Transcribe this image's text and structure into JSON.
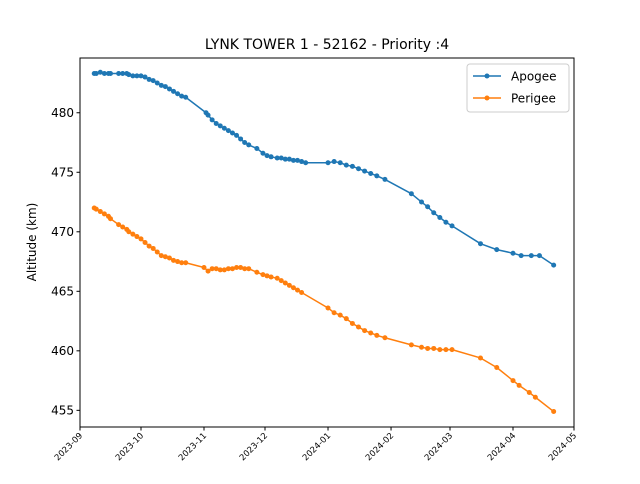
{
  "chart_data": {
    "type": "line",
    "title": "LYNK TOWER 1 - 52162 - Priority :4",
    "xlabel": "",
    "ylabel": "Altitude (km)",
    "xlim": [
      "2023-09-01",
      "2024-05-01"
    ],
    "ylim": [
      453.6,
      484.6
    ],
    "y_ticks": [
      455,
      460,
      465,
      470,
      475,
      480
    ],
    "x_ticks": [
      "2023-09",
      "2023-10",
      "2023-11",
      "2023-12",
      "2024-01",
      "2024-02",
      "2024-03",
      "2024-04",
      "2024-05"
    ],
    "grid": false,
    "legend_position": "top-right",
    "colors": {
      "apogee": "#1f77b4",
      "perigee": "#ff7f0e"
    },
    "series": [
      {
        "name": "Apogee",
        "color": "#1f77b4",
        "points": [
          [
            "2023-09-08",
            483.3
          ],
          [
            "2023-09-09",
            483.3
          ],
          [
            "2023-09-11",
            483.4
          ],
          [
            "2023-09-13",
            483.3
          ],
          [
            "2023-09-15",
            483.3
          ],
          [
            "2023-09-16",
            483.3
          ],
          [
            "2023-09-20",
            483.3
          ],
          [
            "2023-09-22",
            483.3
          ],
          [
            "2023-09-24",
            483.3
          ],
          [
            "2023-09-25",
            483.2
          ],
          [
            "2023-09-27",
            483.1
          ],
          [
            "2023-09-29",
            483.1
          ],
          [
            "2023-10-01",
            483.1
          ],
          [
            "2023-10-03",
            483.0
          ],
          [
            "2023-10-05",
            482.8
          ],
          [
            "2023-10-07",
            482.7
          ],
          [
            "2023-10-09",
            482.5
          ],
          [
            "2023-10-11",
            482.3
          ],
          [
            "2023-10-13",
            482.2
          ],
          [
            "2023-10-15",
            482.0
          ],
          [
            "2023-10-17",
            481.8
          ],
          [
            "2023-10-19",
            481.6
          ],
          [
            "2023-10-21",
            481.4
          ],
          [
            "2023-10-23",
            481.3
          ],
          [
            "2023-11-02",
            480.0
          ],
          [
            "2023-11-03",
            479.8
          ],
          [
            "2023-11-05",
            479.4
          ],
          [
            "2023-11-07",
            479.1
          ],
          [
            "2023-11-09",
            478.9
          ],
          [
            "2023-11-11",
            478.7
          ],
          [
            "2023-11-13",
            478.5
          ],
          [
            "2023-11-15",
            478.3
          ],
          [
            "2023-11-17",
            478.1
          ],
          [
            "2023-11-19",
            477.8
          ],
          [
            "2023-11-21",
            477.5
          ],
          [
            "2023-11-23",
            477.3
          ],
          [
            "2023-11-27",
            477.0
          ],
          [
            "2023-11-30",
            476.6
          ],
          [
            "2023-12-02",
            476.4
          ],
          [
            "2023-12-04",
            476.3
          ],
          [
            "2023-12-07",
            476.2
          ],
          [
            "2023-12-09",
            476.2
          ],
          [
            "2023-12-11",
            476.1
          ],
          [
            "2023-12-13",
            476.1
          ],
          [
            "2023-12-15",
            476.0
          ],
          [
            "2023-12-17",
            476.0
          ],
          [
            "2023-12-19",
            475.9
          ],
          [
            "2023-12-21",
            475.8
          ],
          [
            "2024-01-01",
            475.8
          ],
          [
            "2024-01-04",
            475.9
          ],
          [
            "2024-01-07",
            475.8
          ],
          [
            "2024-01-10",
            475.6
          ],
          [
            "2024-01-13",
            475.5
          ],
          [
            "2024-01-16",
            475.3
          ],
          [
            "2024-01-19",
            475.1
          ],
          [
            "2024-01-22",
            474.9
          ],
          [
            "2024-01-25",
            474.7
          ],
          [
            "2024-01-29",
            474.4
          ],
          [
            "2024-02-11",
            473.2
          ],
          [
            "2024-02-16",
            472.5
          ],
          [
            "2024-02-19",
            472.1
          ],
          [
            "2024-02-22",
            471.6
          ],
          [
            "2024-02-25",
            471.2
          ],
          [
            "2024-02-28",
            470.8
          ],
          [
            "2024-03-02",
            470.5
          ],
          [
            "2024-03-16",
            469.0
          ],
          [
            "2024-03-24",
            468.5
          ],
          [
            "2024-04-01",
            468.2
          ],
          [
            "2024-04-05",
            468.0
          ],
          [
            "2024-04-10",
            468.0
          ],
          [
            "2024-04-14",
            468.0
          ],
          [
            "2024-04-21",
            467.2
          ]
        ]
      },
      {
        "name": "Perigee",
        "color": "#ff7f0e",
        "points": [
          [
            "2023-09-08",
            472.0
          ],
          [
            "2023-09-09",
            471.9
          ],
          [
            "2023-09-11",
            471.7
          ],
          [
            "2023-09-13",
            471.5
          ],
          [
            "2023-09-15",
            471.3
          ],
          [
            "2023-09-16",
            471.1
          ],
          [
            "2023-09-20",
            470.6
          ],
          [
            "2023-09-22",
            470.4
          ],
          [
            "2023-09-24",
            470.2
          ],
          [
            "2023-09-25",
            470.0
          ],
          [
            "2023-09-27",
            469.8
          ],
          [
            "2023-09-29",
            469.6
          ],
          [
            "2023-10-01",
            469.4
          ],
          [
            "2023-10-03",
            469.1
          ],
          [
            "2023-10-05",
            468.8
          ],
          [
            "2023-10-07",
            468.6
          ],
          [
            "2023-10-09",
            468.3
          ],
          [
            "2023-10-11",
            468.0
          ],
          [
            "2023-10-13",
            467.9
          ],
          [
            "2023-10-15",
            467.8
          ],
          [
            "2023-10-17",
            467.6
          ],
          [
            "2023-10-19",
            467.5
          ],
          [
            "2023-10-21",
            467.4
          ],
          [
            "2023-10-23",
            467.4
          ],
          [
            "2023-11-01",
            467.0
          ],
          [
            "2023-11-03",
            466.7
          ],
          [
            "2023-11-05",
            466.9
          ],
          [
            "2023-11-07",
            466.9
          ],
          [
            "2023-11-09",
            466.8
          ],
          [
            "2023-11-11",
            466.8
          ],
          [
            "2023-11-13",
            466.9
          ],
          [
            "2023-11-15",
            466.9
          ],
          [
            "2023-11-17",
            467.0
          ],
          [
            "2023-11-19",
            467.0
          ],
          [
            "2023-11-21",
            466.9
          ],
          [
            "2023-11-23",
            466.9
          ],
          [
            "2023-11-27",
            466.6
          ],
          [
            "2023-11-30",
            466.4
          ],
          [
            "2023-12-02",
            466.3
          ],
          [
            "2023-12-04",
            466.2
          ],
          [
            "2023-12-07",
            466.1
          ],
          [
            "2023-12-09",
            465.9
          ],
          [
            "2023-12-11",
            465.7
          ],
          [
            "2023-12-13",
            465.5
          ],
          [
            "2023-12-15",
            465.3
          ],
          [
            "2023-12-17",
            465.1
          ],
          [
            "2023-12-19",
            464.9
          ],
          [
            "2024-01-01",
            463.6
          ],
          [
            "2024-01-04",
            463.2
          ],
          [
            "2024-01-07",
            463.0
          ],
          [
            "2024-01-10",
            462.7
          ],
          [
            "2024-01-13",
            462.3
          ],
          [
            "2024-01-16",
            462.0
          ],
          [
            "2024-01-19",
            461.7
          ],
          [
            "2024-01-22",
            461.5
          ],
          [
            "2024-01-25",
            461.3
          ],
          [
            "2024-01-29",
            461.1
          ],
          [
            "2024-02-11",
            460.5
          ],
          [
            "2024-02-16",
            460.3
          ],
          [
            "2024-02-19",
            460.2
          ],
          [
            "2024-02-22",
            460.2
          ],
          [
            "2024-02-25",
            460.1
          ],
          [
            "2024-02-28",
            460.1
          ],
          [
            "2024-03-02",
            460.1
          ],
          [
            "2024-03-16",
            459.4
          ],
          [
            "2024-03-24",
            458.6
          ],
          [
            "2024-04-01",
            457.5
          ],
          [
            "2024-04-04",
            457.1
          ],
          [
            "2024-04-09",
            456.5
          ],
          [
            "2024-04-12",
            456.1
          ],
          [
            "2024-04-21",
            454.9
          ]
        ]
      }
    ]
  }
}
